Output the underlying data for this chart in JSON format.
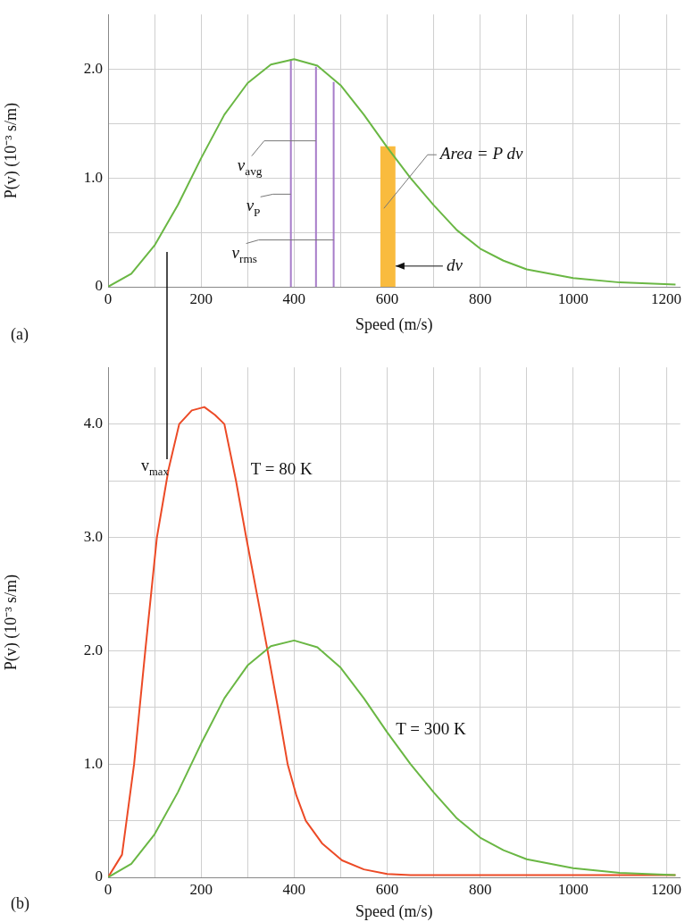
{
  "chart_data": [
    {
      "type": "line",
      "ylabel": "P(v) (10⁻³ s/m)",
      "xlabel": "Speed (m/s)",
      "xlim": [
        0,
        1230
      ],
      "ylim": [
        0,
        2.5
      ],
      "xticks": [
        0,
        {
          "value": 100,
          "label": null
        },
        200,
        {
          "value": 300,
          "label": null
        },
        400,
        {
          "value": 500,
          "label": null
        },
        600,
        {
          "value": 700,
          "label": null
        },
        800,
        {
          "value": 900,
          "label": null
        },
        1000,
        {
          "value": 1100,
          "label": null
        },
        1200
      ],
      "yticks": [
        0,
        {
          "value": 0.5,
          "label": null
        },
        {
          "value": 1,
          "label": "1.0"
        },
        {
          "value": 1.5,
          "label": null
        },
        {
          "value": 2,
          "label": "2.0"
        }
      ],
      "grid": true,
      "legend": false,
      "marker": "none",
      "series": [
        {
          "type": "area",
          "color": "#f9bb3e",
          "x": [
            585,
            618
          ],
          "values": [
            1.29,
            1.29
          ]
        },
        {
          "color": "#a77cc9",
          "x": [
            393,
            393
          ],
          "values": [
            0,
            2.09
          ]
        },
        {
          "color": "#a77cc9",
          "x": [
            447,
            447
          ],
          "values": [
            0,
            2.02
          ]
        },
        {
          "color": "#a77cc9",
          "x": [
            485,
            485
          ],
          "values": [
            0,
            1.88
          ]
        },
        {
          "color": "#6ab744",
          "x": [
            0,
            50,
            100,
            150,
            200,
            250,
            300,
            350,
            400,
            450,
            500,
            550,
            600,
            650,
            700,
            750,
            800,
            850,
            900,
            1000,
            1100,
            1220
          ],
          "values": [
            0,
            0.12,
            0.38,
            0.75,
            1.18,
            1.58,
            1.87,
            2.04,
            2.09,
            2.03,
            1.85,
            1.58,
            1.28,
            1.0,
            0.75,
            0.52,
            0.35,
            0.24,
            0.16,
            0.08,
            0.04,
            0.02
          ]
        }
      ],
      "annotations": [
        "(a)",
        {
          "text": "v$_{avg}$",
          "x": 447,
          "y": 1.34
        },
        {
          "text": "v$_{P}$",
          "x": 393,
          "y": 0.85
        },
        {
          "text": "v$_{rms}$",
          "x": 485,
          "y": 0.43
        },
        {
          "text": "Area = P dv",
          "x": 593,
          "y": 0.72
        },
        {
          "text": "dv",
          "x": 618,
          "y": 0.19
        }
      ]
    },
    {
      "type": "line",
      "ylabel": "P(v) (10⁻³ s/m)",
      "xlabel": "Speed (m/s)",
      "xlim": [
        0,
        1230
      ],
      "ylim": [
        0,
        4.5
      ],
      "xticks": [
        0,
        {
          "value": 100,
          "label": null
        },
        200,
        {
          "value": 300,
          "label": null
        },
        400,
        {
          "value": 500,
          "label": null
        },
        600,
        {
          "value": 700,
          "label": null
        },
        800,
        {
          "value": 900,
          "label": null
        },
        1000,
        {
          "value": 1100,
          "label": null
        },
        1200
      ],
      "yticks": [
        0,
        {
          "value": 0.5,
          "label": null
        },
        {
          "value": 1,
          "label": "1.0"
        },
        {
          "value": 1.5,
          "label": null
        },
        {
          "value": 2,
          "label": "2.0"
        },
        {
          "value": 2.5,
          "label": null
        },
        {
          "value": 3,
          "label": "3.0"
        },
        {
          "value": 3.5,
          "label": null
        },
        {
          "value": 4,
          "label": "4.0"
        }
      ],
      "grid": true,
      "legend": false,
      "marker": "none",
      "series": [
        {
          "name": "T = 80 K",
          "color": "#ec4a26",
          "x": [
            0,
            30,
            56,
            80,
            105,
            130,
            153,
            180,
            207,
            230,
            250,
            275,
            297,
            320,
            343,
            365,
            386,
            405,
            425,
            460,
            503,
            550,
            600,
            650,
            1220
          ],
          "values": [
            0,
            0.2,
            1.0,
            2.0,
            3.0,
            3.6,
            4.0,
            4.12,
            4.15,
            4.08,
            4.0,
            3.5,
            3.0,
            2.5,
            2.0,
            1.5,
            1.0,
            0.72,
            0.5,
            0.3,
            0.15,
            0.07,
            0.03,
            0.02,
            0.02
          ]
        },
        {
          "name": "T = 300 K",
          "color": "#6ab744",
          "x": [
            0,
            50,
            100,
            150,
            200,
            250,
            300,
            350,
            400,
            450,
            500,
            550,
            600,
            650,
            700,
            750,
            800,
            850,
            900,
            1000,
            1100,
            1220
          ],
          "values": [
            0,
            0.12,
            0.38,
            0.75,
            1.18,
            1.58,
            1.87,
            2.04,
            2.09,
            2.03,
            1.85,
            1.58,
            1.28,
            1.0,
            0.75,
            0.52,
            0.35,
            0.24,
            0.16,
            0.08,
            0.04,
            0.02
          ]
        }
      ],
      "annotations": [
        "(b)",
        "v$_{max}$"
      ]
    }
  ]
}
